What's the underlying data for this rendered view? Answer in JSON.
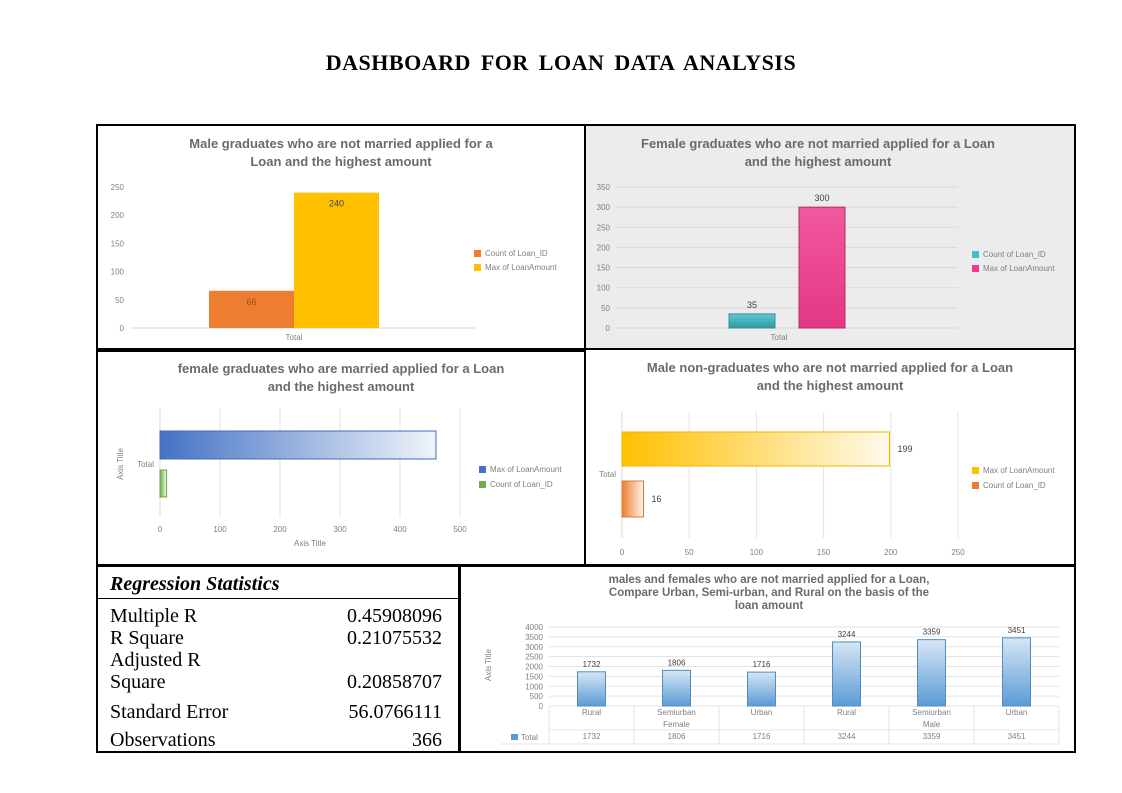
{
  "page": {
    "title": "DASHBOARD  FOR  LOAN  DATA   ANALYSIS"
  },
  "chart_data": [
    {
      "id": "chart1",
      "type": "bar",
      "orientation": "vertical",
      "title": "Male graduates who are not married applied for a Loan and the highest amount",
      "title_lines": [
        "Male graduates who are not married applied for a",
        "Loan and the highest amount"
      ],
      "categories": [
        "Total"
      ],
      "series": [
        {
          "name": "Count of Loan_ID",
          "values": [
            66
          ],
          "color": "#ED7D31"
        },
        {
          "name": "Max of LoanAmount",
          "values": [
            240
          ],
          "color": "#FFC000"
        }
      ],
      "ylim": [
        0,
        250
      ],
      "yticks": [
        0,
        50,
        100,
        150,
        200,
        250
      ],
      "grid": false,
      "legend": "right"
    },
    {
      "id": "chart2",
      "type": "bar",
      "orientation": "vertical",
      "title": "Female graduates who are not married applied for a Loan and the highest amount",
      "title_lines": [
        "Female graduates who are not married applied for a Loan",
        "and the highest amount"
      ],
      "categories": [
        "Total"
      ],
      "series": [
        {
          "name": "Count of Loan_ID",
          "values": [
            35
          ],
          "color": "#3EC1C7"
        },
        {
          "name": "Max of LoanAmount",
          "values": [
            300
          ],
          "color": "#F03A8C"
        }
      ],
      "ylim": [
        0,
        350
      ],
      "yticks": [
        0,
        50,
        100,
        150,
        200,
        250,
        300,
        350
      ],
      "grid": true,
      "legend": "right"
    },
    {
      "id": "chart3",
      "type": "bar",
      "orientation": "horizontal",
      "title": "female graduates who are married applied for a Loan and the highest amount",
      "title_lines": [
        "female graduates who are married applied for a Loan",
        "and the highest amount"
      ],
      "categories": [
        "Total"
      ],
      "series": [
        {
          "name": "Max of LoanAmount",
          "values": [
            460
          ],
          "color": "#4472C4"
        },
        {
          "name": "Count of Loan_ID",
          "values": [
            11
          ],
          "color": "#70AD47"
        }
      ],
      "xlim": [
        0,
        500
      ],
      "xticks": [
        0,
        100,
        200,
        300,
        400,
        500
      ],
      "xlabel": "Axis Title",
      "ylabel": "Axis Title",
      "grid": true,
      "legend": "right"
    },
    {
      "id": "chart4",
      "type": "bar",
      "orientation": "horizontal",
      "title": "Male non-graduates who are not married applied for a Loan and the highest amount",
      "title_lines": [
        "Male non-graduates who are not married applied for a Loan",
        "and the highest amount"
      ],
      "categories": [
        "Total"
      ],
      "series": [
        {
          "name": "Max of LoanAmount",
          "values": [
            199
          ],
          "color": "#FFC000"
        },
        {
          "name": "Count of Loan_ID",
          "values": [
            16
          ],
          "color": "#ED7D31"
        }
      ],
      "xlim": [
        0,
        250
      ],
      "xticks": [
        0,
        50,
        100,
        150,
        200,
        250
      ],
      "grid": true,
      "legend": "right"
    },
    {
      "id": "chart5",
      "type": "bar",
      "orientation": "vertical",
      "title": "males and females who are not married applied for a Loan, Compare Urban, Semi-urban, and Rural on the basis of the loan amount",
      "title_lines": [
        "males and females who are not married applied for a Loan,",
        "Compare Urban, Semi-urban, and Rural on the basis of the",
        "loan amount"
      ],
      "categories": [
        "Rural",
        "Semiurban",
        "Urban",
        "Rural",
        "Semiurban",
        "Urban"
      ],
      "groups": [
        {
          "name": "Female",
          "span": 3
        },
        {
          "name": "Male",
          "span": 3
        }
      ],
      "series": [
        {
          "name": "Total",
          "values": [
            1732,
            1806,
            1716,
            3244,
            3359,
            3451
          ],
          "color": "#5B9BD5"
        }
      ],
      "ylim": [
        0,
        4000
      ],
      "yticks": [
        0,
        500,
        1000,
        1500,
        2000,
        2500,
        3000,
        3500,
        4000
      ],
      "ylabel": "Axis Title",
      "grid": true,
      "data_table": true
    }
  ],
  "regression": {
    "title": "Regression Statistics",
    "rows": [
      {
        "label": "Multiple R",
        "value": "0.45908096"
      },
      {
        "label": "R Square",
        "value": "0.21075532"
      },
      {
        "label": "Adjusted R",
        "value": ""
      },
      {
        "label": "Square",
        "value": "0.20858707"
      },
      {
        "label": "Standard Error",
        "value": "56.0766111"
      },
      {
        "label": "Observations",
        "value": "366"
      }
    ]
  }
}
